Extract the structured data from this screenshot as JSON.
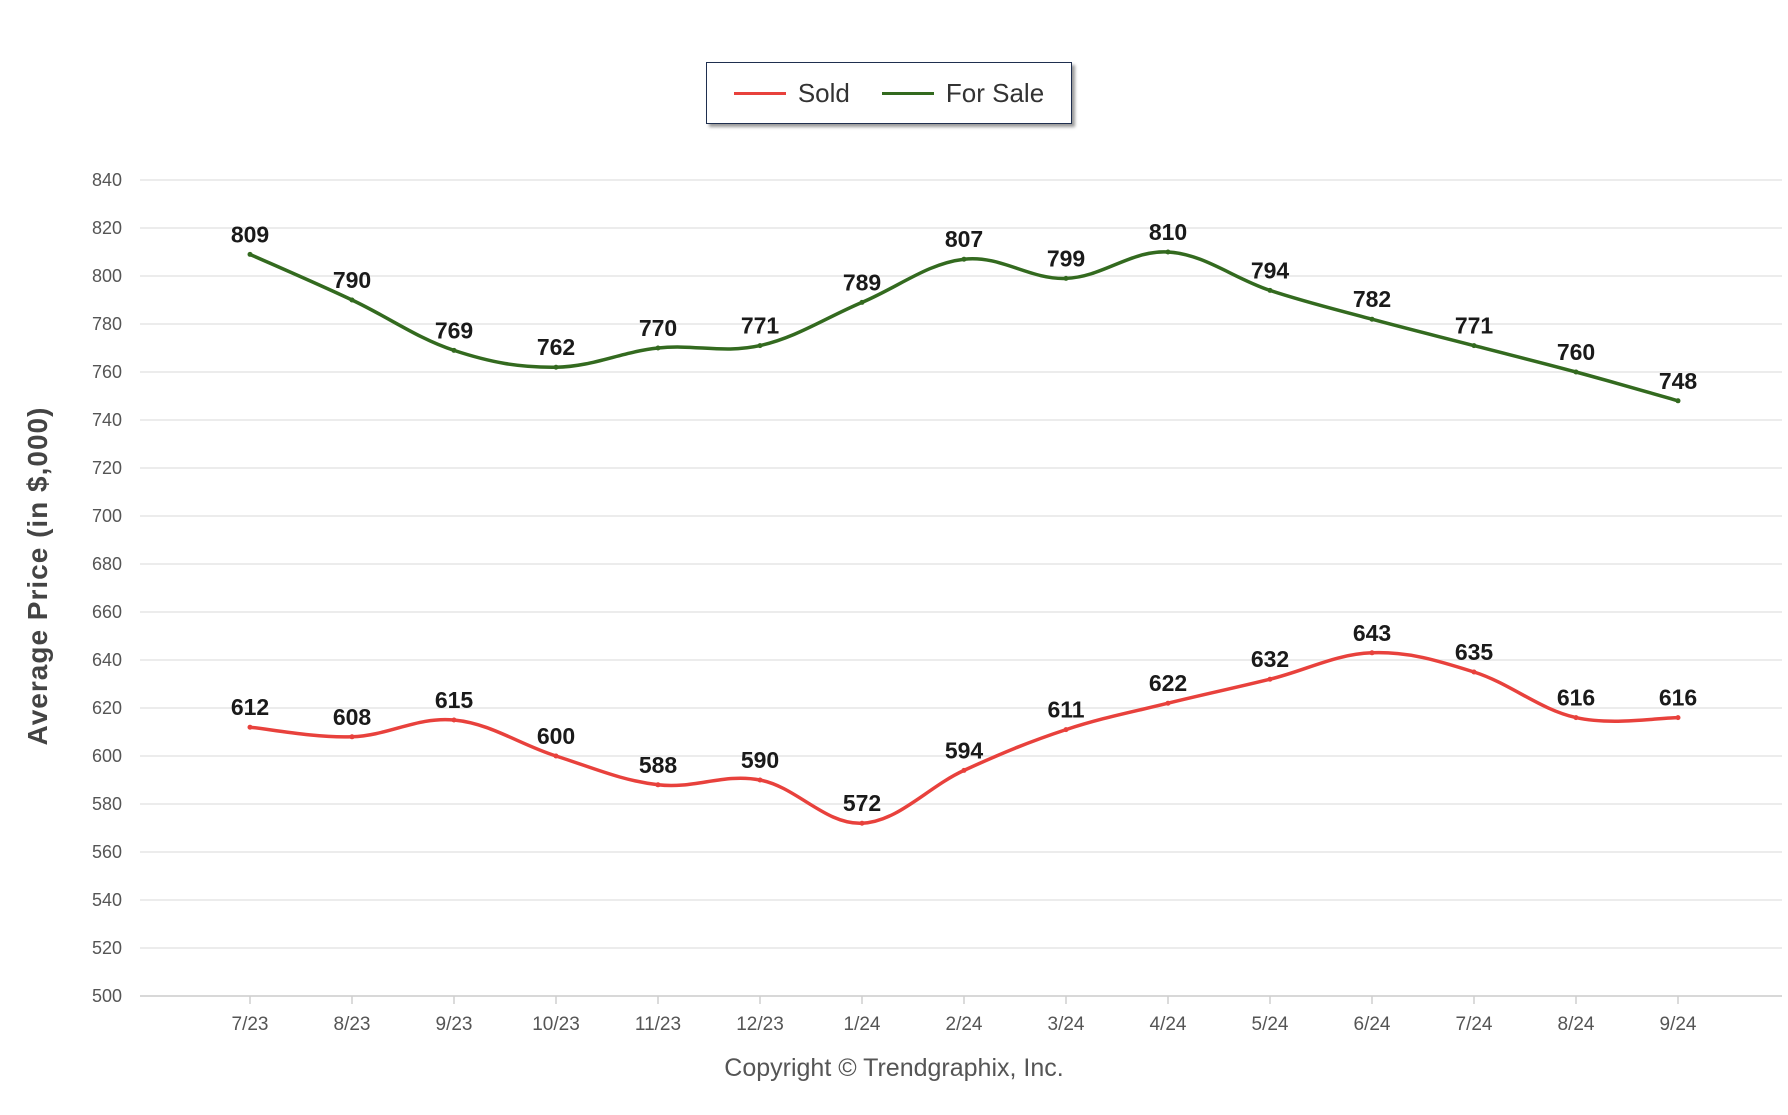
{
  "chart_data": {
    "type": "line",
    "categories": [
      "7/23",
      "8/23",
      "9/23",
      "10/23",
      "11/23",
      "12/23",
      "1/24",
      "2/24",
      "3/24",
      "4/24",
      "5/24",
      "6/24",
      "7/24",
      "8/24",
      "9/24"
    ],
    "series": [
      {
        "name": "Sold",
        "color": "#e8413c",
        "values": [
          612,
          608,
          615,
          600,
          588,
          590,
          572,
          594,
          611,
          622,
          632,
          643,
          635,
          616,
          616
        ]
      },
      {
        "name": "For Sale",
        "color": "#336a1f",
        "values": [
          809,
          790,
          769,
          762,
          770,
          771,
          789,
          807,
          799,
          810,
          794,
          782,
          771,
          760,
          748
        ]
      }
    ],
    "ylabel": "Average Price (in $,000)",
    "ylim": [
      500,
      840
    ],
    "yticks": [
      500,
      520,
      540,
      560,
      580,
      600,
      620,
      640,
      660,
      680,
      700,
      720,
      740,
      760,
      780,
      800,
      820,
      840
    ],
    "grid": true,
    "legend_position": "top-center",
    "data_labels": true
  },
  "footer": {
    "copyright": "Copyright © Trendgraphix, Inc."
  }
}
